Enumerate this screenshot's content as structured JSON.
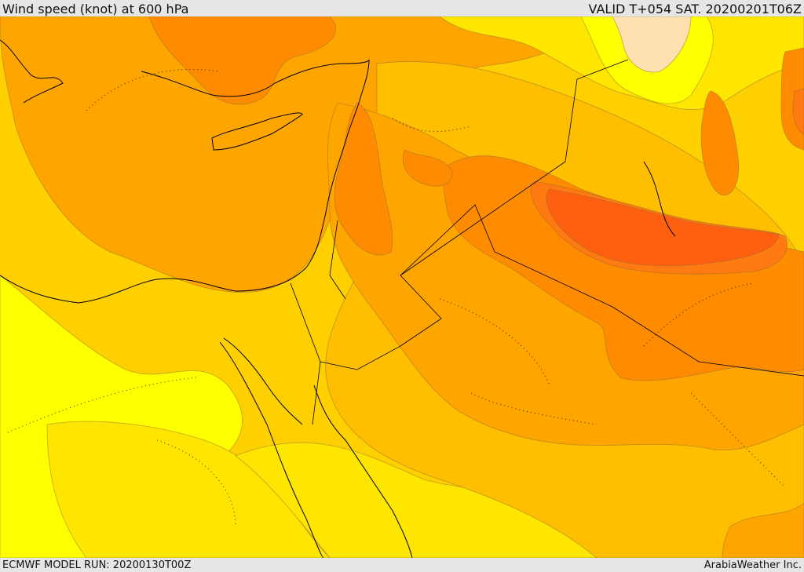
{
  "header": {
    "title": "Wind speed (knot) at 600 hPa",
    "valid": "VALID T+054 SAT. 20200201T06Z"
  },
  "footer": {
    "model_run": "ECMWF MODEL RUN: 20200130T00Z",
    "credit": "ArabiaWeather Inc."
  },
  "map": {
    "colors": {
      "bright_yellow": "#ffff00",
      "yellow": "#ffe600",
      "gold": "#ffd000",
      "light_orange": "#ffbf00",
      "orange": "#ffa500",
      "dark_orange": "#ff8c00",
      "red_orange": "#ff7a10",
      "deep_orange": "#ff6010",
      "peach": "#ffe0b0"
    }
  }
}
